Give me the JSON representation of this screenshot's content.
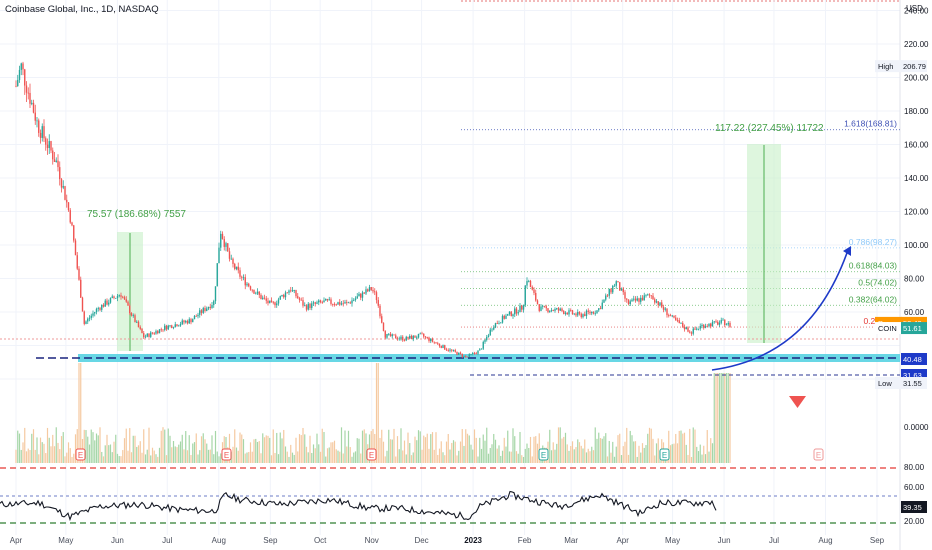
{
  "header": {
    "title": "Coinbase Global, Inc., 1D, NASDAQ"
  },
  "axis": {
    "currency": "USD",
    "price_ticks": [
      "240.00",
      "220.00",
      "200.00",
      "180.00",
      "160.00",
      "140.00",
      "120.00",
      "100.00",
      "80.00",
      "60.00",
      "40.00",
      "20.00"
    ],
    "volume_ticks": [
      "20.00",
      "0.0000"
    ],
    "rsi_ticks": [
      "80.00",
      "60.00",
      "40.00",
      "20.00"
    ],
    "months": [
      "Apr",
      "May",
      "Jun",
      "Jul",
      "Aug",
      "Sep",
      "Oct",
      "Nov",
      "Dec",
      "2023",
      "Feb",
      "Mar",
      "Apr",
      "May",
      "Jun",
      "Jul",
      "Aug",
      "Sep"
    ]
  },
  "tags": {
    "high_label": "High",
    "high_value": "206.79",
    "low_label": "Low",
    "low_value": "31.55",
    "prev_label": "Pre",
    "prev_value": "53.49",
    "coin_label": "COIN",
    "coin_value": "51.61",
    "support_value": "40.48",
    "dashed_value": "31.63",
    "rsi_value": "39.35"
  },
  "annotations": {
    "measure1": "75.57 (186.68%) 7557",
    "measure2": "117.22 (227.45%) 11722",
    "fib": [
      "1.618(168.81)",
      "0.786(98.27)",
      "0.618(84.03)",
      "0.5(74.02)",
      "0.382(64.02)",
      "0.236(51"
    ],
    "earnings": [
      "E",
      "E",
      "E",
      "E",
      "E",
      "E",
      "E"
    ]
  },
  "colors": {
    "up": "#26a69a",
    "down": "#ef5350",
    "vol_up": "#a5d6a7",
    "vol_down": "#f5c9a0",
    "accent_blue": "#1e3ac8",
    "support_fill": "#4dd0e1",
    "fib_line": "#43a047",
    "red_dashed": "#e53935"
  },
  "chart_data": {
    "type": "candlestick",
    "title": "Coinbase Global, Inc., 1D, NASDAQ",
    "x_range": [
      "2022-04",
      "2023-09"
    ],
    "ylim": [
      20,
      250
    ],
    "y_ticks": [
      20,
      40,
      60,
      80,
      100,
      120,
      140,
      160,
      180,
      200,
      220,
      240
    ],
    "close_path": [
      [
        "2022-04-01",
        195
      ],
      [
        "2022-04-04",
        207
      ],
      [
        "2022-04-14",
        172
      ],
      [
        "2022-04-26",
        148
      ],
      [
        "2022-05-04",
        115
      ],
      [
        "2022-05-10",
        70
      ],
      [
        "2022-05-12",
        53
      ],
      [
        "2022-05-20",
        62
      ],
      [
        "2022-06-03",
        71
      ],
      [
        "2022-06-13",
        52
      ],
      [
        "2022-06-17",
        45
      ],
      [
        "2022-06-30",
        51
      ],
      [
        "2022-07-15",
        55
      ],
      [
        "2022-07-29",
        66
      ],
      [
        "2022-08-02",
        109
      ],
      [
        "2022-08-08",
        90
      ],
      [
        "2022-08-15",
        80
      ],
      [
        "2022-08-26",
        69
      ],
      [
        "2022-09-02",
        64
      ],
      [
        "2022-09-13",
        74
      ],
      [
        "2022-09-22",
        63
      ],
      [
        "2022-10-03",
        66
      ],
      [
        "2022-10-17",
        65
      ],
      [
        "2022-11-01",
        74
      ],
      [
        "2022-11-04",
        68
      ],
      [
        "2022-11-09",
        46
      ],
      [
        "2022-11-21",
        44
      ],
      [
        "2022-12-01",
        46
      ],
      [
        "2022-12-16",
        38
      ],
      [
        "2022-12-28",
        33
      ],
      [
        "2023-01-05",
        37
      ],
      [
        "2023-01-13",
        52
      ],
      [
        "2023-01-20",
        57
      ],
      [
        "2023-01-31",
        63
      ],
      [
        "2023-02-02",
        81
      ],
      [
        "2023-02-10",
        62
      ],
      [
        "2023-02-22",
        61
      ],
      [
        "2023-03-06",
        58
      ],
      [
        "2023-03-17",
        61
      ],
      [
        "2023-03-28",
        78
      ],
      [
        "2023-04-04",
        65
      ],
      [
        "2023-04-18",
        70
      ],
      [
        "2023-05-01",
        56
      ],
      [
        "2023-05-12",
        48
      ],
      [
        "2023-05-19",
        52
      ],
      [
        "2023-06-01",
        54
      ],
      [
        "2023-06-05",
        51.6
      ]
    ],
    "measures": [
      {
        "label": "75.57 (186.68%) 7557",
        "from": "2022-06-17",
        "low": 45.0,
        "high": 120.0
      },
      {
        "label": "117.22 (227.45%) 11722",
        "from": "2023-06-07",
        "low": 51.6,
        "high": 168.81
      }
    ],
    "fibonacci": [
      {
        "level": "1.618",
        "price": 168.81
      },
      {
        "level": "0.786",
        "price": 98.27
      },
      {
        "level": "0.618",
        "price": 84.03
      },
      {
        "level": "0.5",
        "price": 74.02
      },
      {
        "level": "0.382",
        "price": 64.02
      },
      {
        "level": "0.236",
        "price": 51
      }
    ],
    "support_line": 40.48,
    "high": 206.79,
    "low": 31.55,
    "last": 51.61,
    "rsi": {
      "last": 39.35,
      "overbought": 80,
      "oversold": 20
    }
  }
}
